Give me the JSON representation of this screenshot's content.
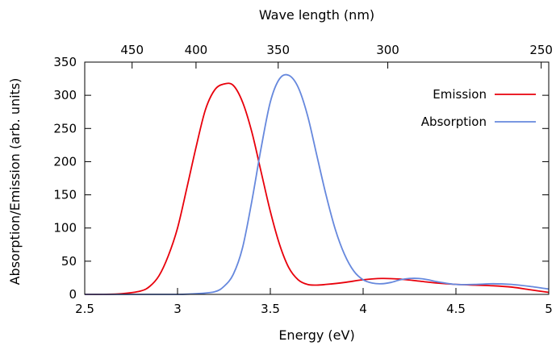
{
  "chart_data": {
    "type": "line",
    "xlabel": "Energy (eV)",
    "ylabel": "Absorption/Emission (arb. units)",
    "x2label": "Wave length (nm)",
    "xlim": [
      2.5,
      5
    ],
    "ylim": [
      0,
      350
    ],
    "x_ticks": [
      2.5,
      3,
      3.5,
      4,
      4.5,
      5
    ],
    "x_tick_labels": [
      "2.5",
      "3",
      "3.5",
      "4",
      "4.5",
      "5"
    ],
    "y_ticks": [
      0,
      50,
      100,
      150,
      200,
      250,
      300,
      350
    ],
    "y_tick_labels": [
      "0",
      "50",
      "100",
      "150",
      "200",
      "250",
      "300",
      "350"
    ],
    "x2_ticks_nm": [
      450,
      400,
      350,
      300,
      250
    ],
    "x2_tick_labels": [
      "450",
      "400",
      "350",
      "300",
      "250"
    ],
    "grid": false,
    "legend_position": "top-right",
    "series": [
      {
        "name": "Emission",
        "color": "#e8000b",
        "x": [
          2.5,
          2.6,
          2.7,
          2.8,
          2.85,
          2.9,
          2.95,
          3.0,
          3.05,
          3.1,
          3.15,
          3.2,
          3.25,
          3.3,
          3.35,
          3.4,
          3.45,
          3.5,
          3.55,
          3.6,
          3.65,
          3.7,
          3.75,
          3.8,
          3.9,
          4.0,
          4.1,
          4.2,
          4.3,
          4.4,
          4.5,
          4.6,
          4.7,
          4.8,
          4.9,
          5.0
        ],
        "y": [
          0,
          0,
          1,
          5,
          12,
          28,
          58,
          100,
          160,
          222,
          278,
          308,
          317,
          315,
          290,
          245,
          185,
          125,
          75,
          40,
          22,
          15,
          14,
          15,
          18,
          22,
          24,
          23,
          20,
          17,
          15,
          14,
          13,
          11,
          7,
          3
        ]
      },
      {
        "name": "Absorption",
        "color": "#6688dd",
        "x": [
          2.5,
          2.8,
          3.0,
          3.1,
          3.2,
          3.25,
          3.3,
          3.35,
          3.4,
          3.45,
          3.5,
          3.55,
          3.6,
          3.65,
          3.7,
          3.75,
          3.8,
          3.85,
          3.9,
          3.95,
          4.0,
          4.05,
          4.1,
          4.15,
          4.2,
          4.25,
          4.3,
          4.35,
          4.4,
          4.5,
          4.6,
          4.7,
          4.8,
          4.9,
          5.0
        ],
        "y": [
          0,
          0,
          0,
          1,
          4,
          12,
          30,
          70,
          140,
          220,
          290,
          325,
          330,
          312,
          270,
          210,
          150,
          98,
          60,
          35,
          22,
          17,
          16,
          18,
          22,
          24,
          24,
          22,
          19,
          15,
          15,
          16,
          15,
          12,
          8
        ]
      }
    ]
  }
}
